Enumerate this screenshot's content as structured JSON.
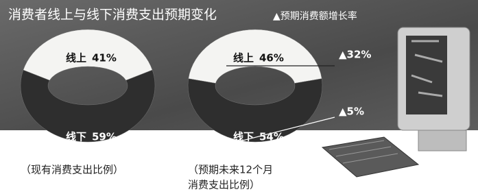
{
  "header": {
    "title": "消费者线上与线下消费支出预期变化",
    "note": "▲预期消费额增长率"
  },
  "chart_data": [
    {
      "type": "donut",
      "caption": [
        "（现有消费支出比例）"
      ],
      "categories": [
        "线上",
        "线下"
      ],
      "values": [
        41,
        59
      ],
      "value_labels": [
        "41%",
        "59%"
      ],
      "colors": [
        "#f4f4f2",
        "#2e2e2e"
      ]
    },
    {
      "type": "donut",
      "caption": [
        "（预期未来12个月",
        "消费支出比例）"
      ],
      "categories": [
        "线上",
        "线下"
      ],
      "values": [
        46,
        54
      ],
      "value_labels": [
        "46%",
        "54%"
      ],
      "colors": [
        "#f4f4f2",
        "#2e2e2e"
      ],
      "growth_values": [
        32,
        5
      ],
      "growth_labels": [
        "▲32%",
        "▲5%"
      ]
    }
  ]
}
